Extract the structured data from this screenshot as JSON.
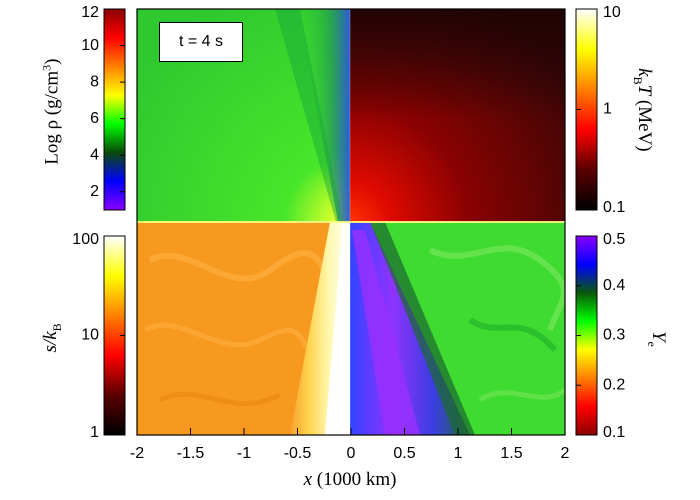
{
  "chart_data": {
    "type": "heatmap",
    "annotation": "t = 4 s",
    "x_axis": {
      "label_main": "x",
      "label_rest": " (1000 km)",
      "range": [
        -2,
        2
      ],
      "ticks": [
        "-2",
        "-1.5",
        "-1",
        "-0.5",
        "0",
        "0.5",
        "1",
        "1.5",
        "2"
      ]
    },
    "colorbars": [
      {
        "id": "density",
        "label": "Log ρ (g/cm³)",
        "label_parts": {
          "a": "Log ρ (g/cm",
          "sup": "3",
          "b": ")"
        },
        "scale": "linear",
        "range": [
          1,
          12
        ],
        "ticks": [
          "2",
          "4",
          "6",
          "8",
          "10",
          "12"
        ],
        "colors": [
          "#8a00ff",
          "#0000ff",
          "#0a4a0a",
          "#00ff00",
          "#ffff00",
          "#ff8000",
          "#ff0000",
          "#8b0000"
        ],
        "quadrant": "upper-left"
      },
      {
        "id": "temperature",
        "label": "kBT (MeV)",
        "label_parts": {
          "a": "k",
          "sub": "B",
          "b": "T (MeV)"
        },
        "scale": "log",
        "range": [
          0.1,
          10
        ],
        "ticks": [
          "0.1",
          "1",
          "10"
        ],
        "colors": [
          "#000000",
          "#5a0000",
          "#ff0000",
          "#ff8000",
          "#ffff00",
          "#ffffff"
        ],
        "quadrant": "upper-right"
      },
      {
        "id": "entropy",
        "label": "s/kB",
        "label_parts": {
          "a": "s/k",
          "sub": "B"
        },
        "scale": "log",
        "range": [
          1,
          100
        ],
        "ticks": [
          "1",
          "10",
          "100"
        ],
        "colors": [
          "#000000",
          "#5a0000",
          "#ff0000",
          "#ff8000",
          "#ffff00",
          "#ffffff"
        ],
        "quadrant": "lower-left"
      },
      {
        "id": "ye",
        "label": "Ye",
        "label_parts": {
          "a": "Y",
          "sub": "e"
        },
        "scale": "linear",
        "range": [
          0.1,
          0.5
        ],
        "ticks": [
          "0.1",
          "0.2",
          "0.3",
          "0.4",
          "0.5"
        ],
        "colors": [
          "#8b0000",
          "#ff0000",
          "#ff8000",
          "#ffff00",
          "#00ff00",
          "#0a5a0a",
          "#0000ff",
          "#8a00ff"
        ],
        "quadrant": "lower-right"
      }
    ],
    "quadrant_colors": {
      "upper-left": {
        "base": "#2ed32e",
        "pole": "#3a6fd0",
        "core": "#ffff40"
      },
      "upper-right": {
        "base": "#4a0707",
        "core": "#ff1a00"
      },
      "lower-left": {
        "base": "#f79a22",
        "jet": "#fffbe0"
      },
      "lower-right": {
        "base": "#44dd33",
        "jet": "#2a3ee0",
        "jet_core": "#9a33ff"
      }
    }
  }
}
